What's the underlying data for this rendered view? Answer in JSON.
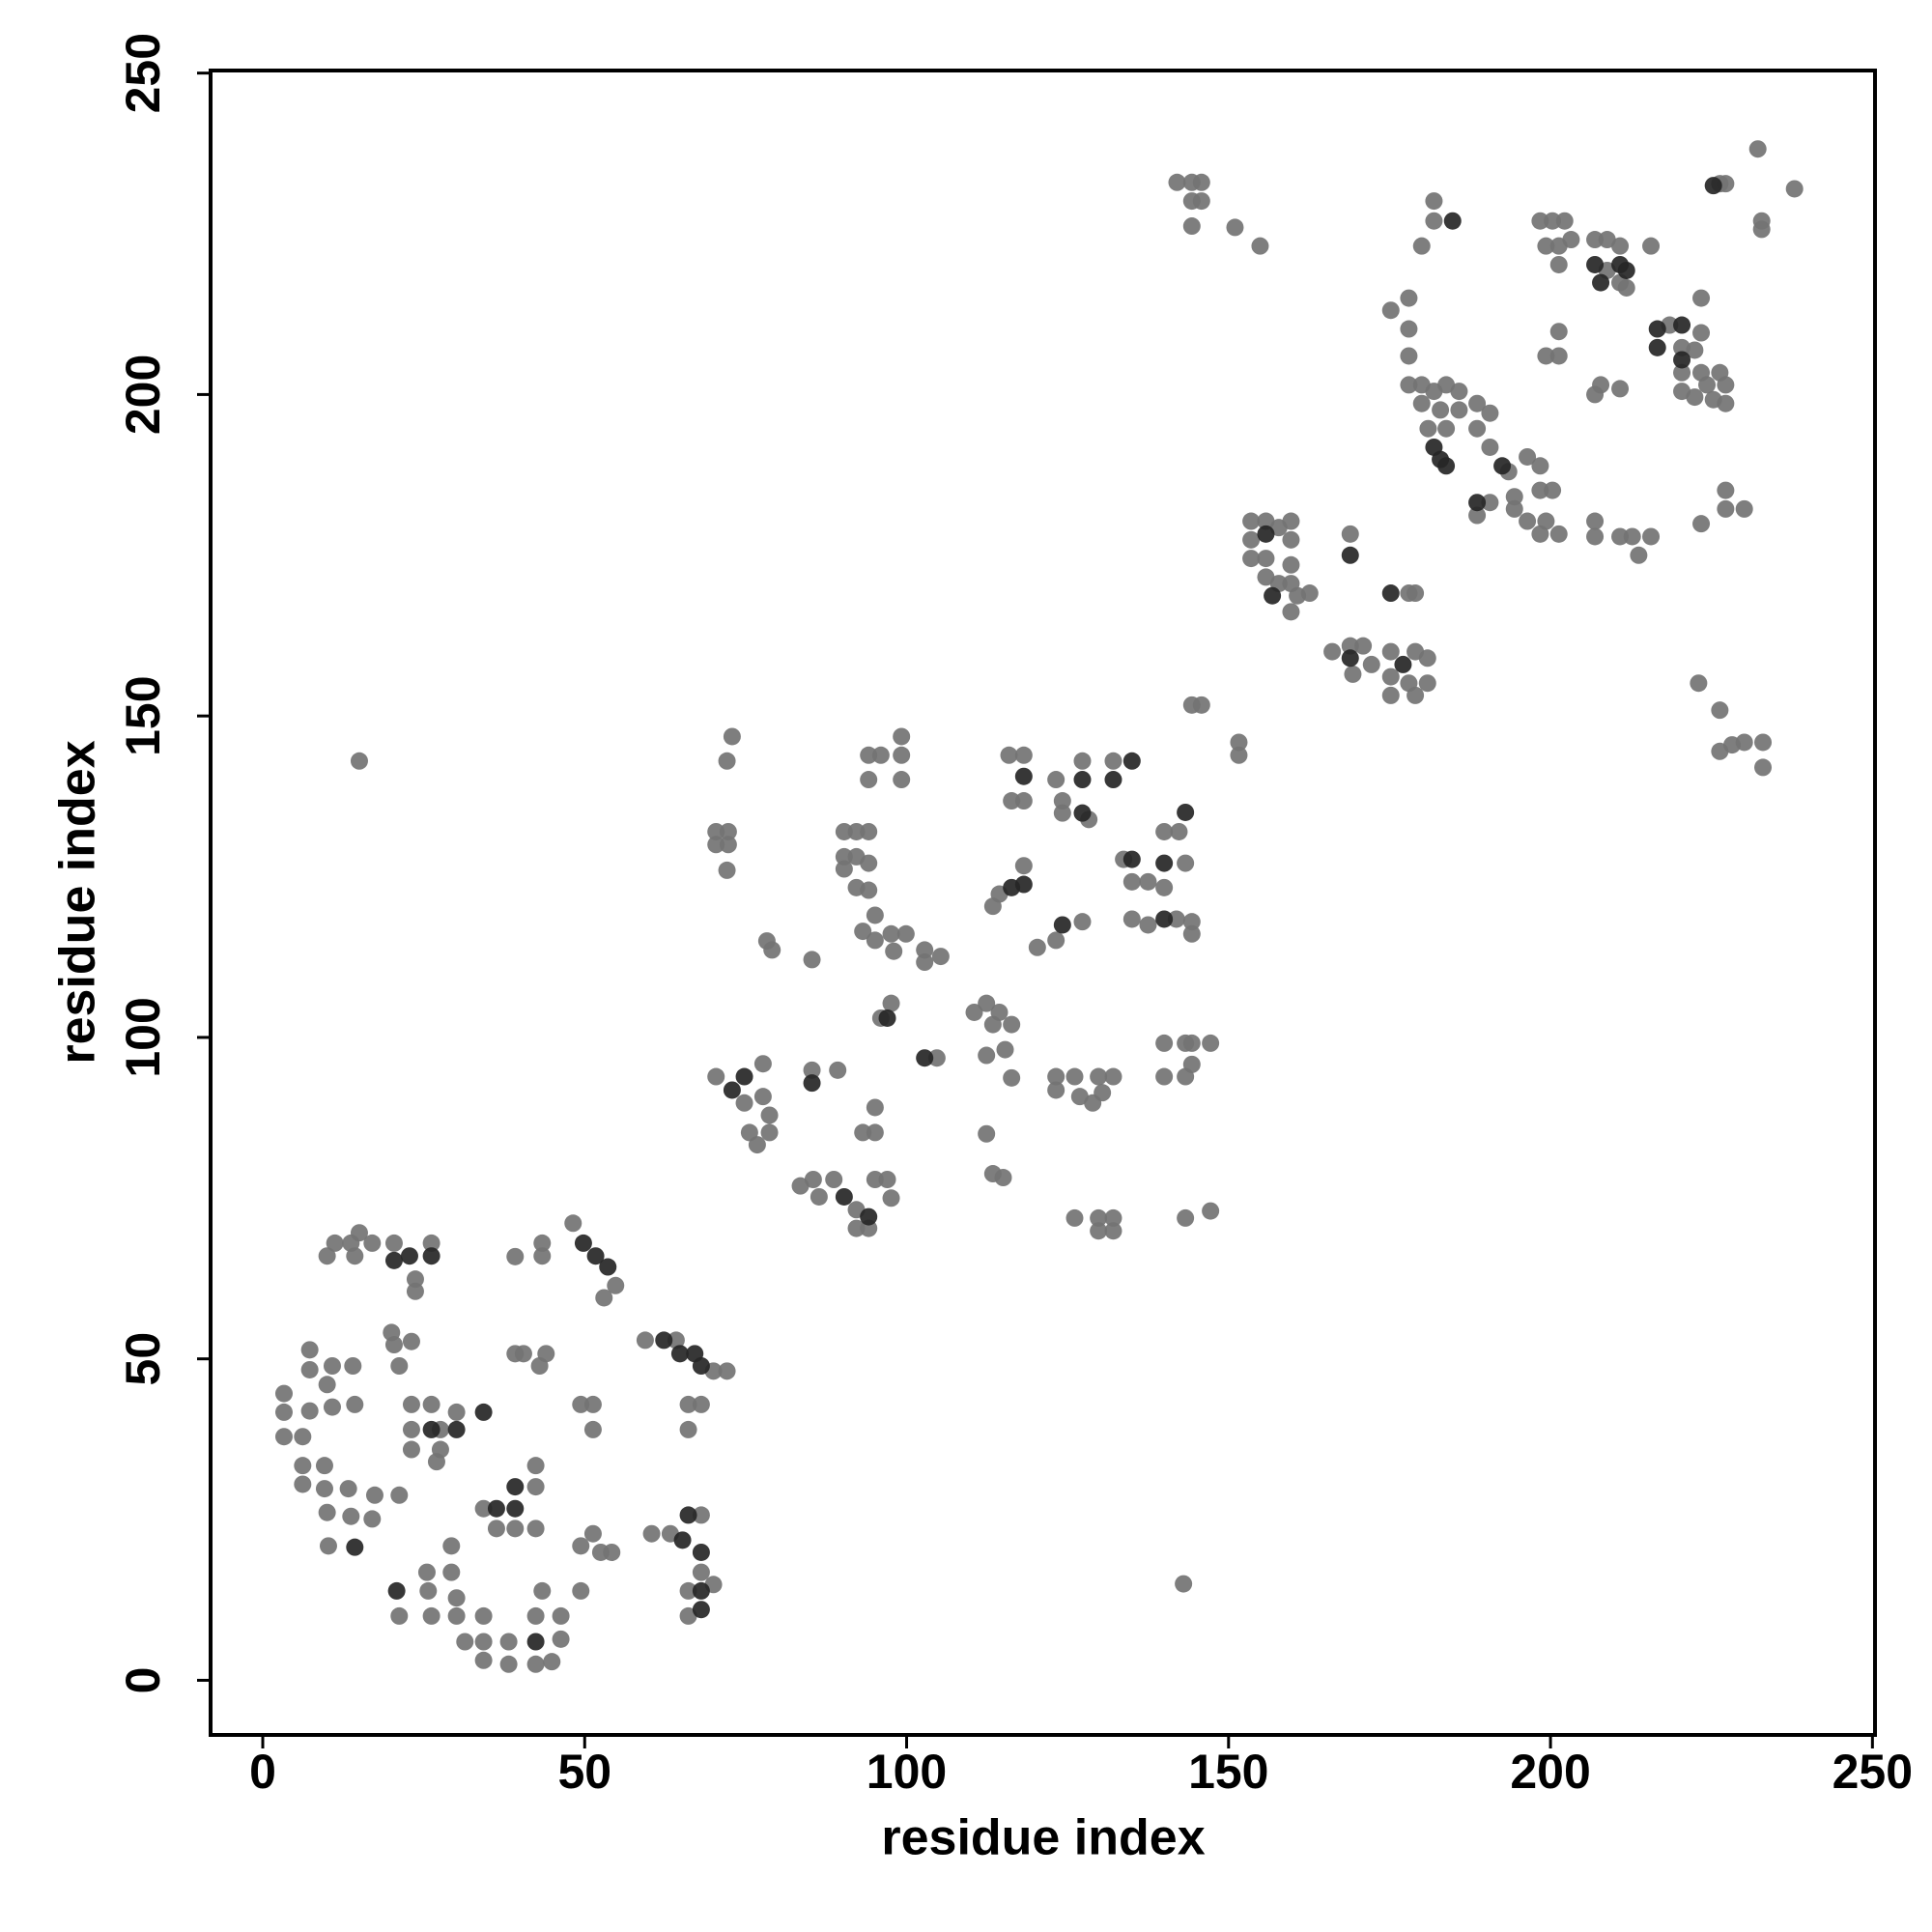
{
  "chart_data": {
    "type": "scatter",
    "xlabel": "residue index",
    "ylabel": "residue index",
    "xlim": [
      -8.1,
      250.4
    ],
    "ylim": [
      -8.5,
      250.4
    ],
    "xticks": [
      0,
      50,
      100,
      150,
      200,
      250
    ],
    "yticks": [
      0,
      50,
      100,
      150,
      200,
      250
    ],
    "series": [
      {
        "color": "#737373",
        "x": [
          15,
          143,
          3.3,
          6.2,
          3.3,
          3.3,
          6.2,
          6.2,
          7.3,
          7.3,
          7.3,
          10,
          10.8,
          10.8,
          9.6,
          9.6,
          10,
          10.2,
          11.2,
          10,
          13.7,
          14.3,
          15,
          17,
          14,
          14.3,
          13.3,
          13.7,
          17,
          17.4,
          20.4,
          23.7,
          23.7,
          26.2,
          20,
          20.4,
          21.2,
          23.1,
          21.2,
          23.1,
          23.1,
          23.1,
          26.2,
          27,
          27.6,
          27.6,
          30.1,
          29.3,
          29.3,
          25.5,
          21.2,
          25.7,
          26.2,
          30.1,
          30.1,
          31.4,
          34.3,
          34.3,
          34.3,
          34.3,
          36.3,
          39.2,
          39.2,
          39.2,
          38.2,
          38.2,
          42.4,
          42.4,
          42.4,
          42.4,
          42.4,
          40.5,
          43,
          44,
          43.4,
          43.4,
          43.4,
          44.9,
          46.3,
          46.3,
          49.4,
          49.4,
          48.2,
          54.8,
          53,
          49.4,
          51.3,
          51.3,
          51.3,
          54.2,
          52.5,
          59.4,
          64.2,
          70,
          72.1,
          66.1,
          68.1,
          66.1,
          60.4,
          63.3,
          68.1,
          68.1,
          70,
          66.1,
          66.1,
          72.9,
          72.1,
          70.4,
          72.3,
          70.4,
          72.3,
          72.1,
          70.4,
          74.8,
          75.6,
          77.7,
          77.7,
          78.7,
          76.8,
          78.7,
          78.3,
          79.1,
          85.3,
          85.3,
          89.3,
          83.5,
          85.5,
          86.4,
          88.7,
          92.2,
          92.2,
          94.1,
          95.1,
          97,
          97.6,
          93.2,
          95.1,
          95.1,
          90.3,
          92.2,
          94.1,
          90.3,
          92.2,
          94.1,
          90.3,
          92.2,
          94.1,
          94.1,
          96,
          94.1,
          99.2,
          99.2,
          99.2,
          93.2,
          95.1,
          95.1,
          97.6,
          98,
          99.9,
          102.8,
          102.8,
          105.3,
          96,
          97.6,
          104.7,
          110.5,
          112.4,
          114.4,
          113.4,
          116.3,
          112.4,
          115.3,
          116.3,
          112.4,
          113.4,
          115,
          114.4,
          118.2,
          115.9,
          118.2,
          118.2,
          116.3,
          113.4,
          120.3,
          123.2,
          127.3,
          123.2,
          124.2,
          124.2,
          127.3,
          128.3,
          132.1,
          123.2,
          123.2,
          126.1,
          126.9,
          128.9,
          129.8,
          132.1,
          130.4,
          126.1,
          129.8,
          129.8,
          132.1,
          132.1,
          133.7,
          135,
          137.5,
          135,
          137.5,
          141.9,
          140,
          140,
          142.3,
          143.3,
          144.3,
          144.3,
          140,
          143.3,
          144.3,
          147.2,
          140,
          143.3,
          144.3,
          143.3,
          147.2,
          144.3,
          145.8,
          151.6,
          151.6,
          153.5,
          155.8,
          157.8,
          159.7,
          153.5,
          159.7,
          153.5,
          155.8,
          159.7,
          155.8,
          157.8,
          159.7,
          160.7,
          162.6,
          159.7,
          168.9,
          166.1,
          168.9,
          170.9,
          169.3,
          172.2,
          175.2,
          175.2,
          179,
          180.9,
          175.2,
          178,
          179,
          180.9,
          178,
          179,
          142,
          144.3,
          145.8,
          144.3,
          145.8,
          144.3,
          151,
          154.9,
          181.9,
          181.9,
          180,
          175.2,
          178,
          178,
          178,
          178,
          180,
          181.9,
          183.8,
          185.8,
          180,
          182.9,
          185.8,
          181,
          183.8,
          188.6,
          190.6,
          188.6,
          190.6,
          193.5,
          196.4,
          198.4,
          188.6,
          190.6,
          194.4,
          194.4,
          198.4,
          200.3,
          196.4,
          199.3,
          201.3,
          198.4,
          206.9,
          206.9,
          210.8,
          212.7,
          215.6,
          213.7,
          198.4,
          200.3,
          202.2,
          199.3,
          201.3,
          203.2,
          201.3,
          206.9,
          208.8,
          210.8,
          215.6,
          208.8,
          210.8,
          211.8,
          201.3,
          199.3,
          201.3,
          206.9,
          207.8,
          210.8,
          218.5,
          220.4,
          222.4,
          223.4,
          223.4,
          220.4,
          223.4,
          224.3,
          226.3,
          227.2,
          222.4,
          225.3,
          227.2,
          220.4,
          223.4,
          227.2,
          227.2,
          230.1,
          226.3,
          227.2,
          232.2,
          232.8,
          232.8,
          237.9,
          223,
          226.3,
          226.3,
          230.1,
          233,
          233,
          228.2
        ],
        "values": [
          143,
          15,
          37.9,
          37.9,
          44.6,
          41.7,
          33.4,
          30.5,
          51.4,
          48.3,
          41.9,
          46,
          48.9,
          42.5,
          33.4,
          29.8,
          26.1,
          20.9,
          68,
          66,
          68,
          66,
          69.6,
          68,
          48.9,
          42.9,
          29.8,
          25.5,
          25.1,
          28.8,
          68,
          62.4,
          60.5,
          68,
          54.1,
          52.2,
          48.9,
          52.7,
          28.8,
          42.9,
          39,
          35.9,
          42.9,
          34,
          39,
          35.9,
          41.7,
          20.9,
          16.8,
          16.8,
          10,
          13.9,
          10,
          12.8,
          10,
          6,
          10,
          6,
          3.1,
          26.7,
          23.6,
          23.6,
          65.9,
          50.8,
          6,
          2.5,
          33.4,
          30.1,
          23.6,
          10,
          2.5,
          50.8,
          48.9,
          50.8,
          68,
          66,
          13.9,
          2.9,
          10,
          6.4,
          13.9,
          20.9,
          71.1,
          61.4,
          59.5,
          42.9,
          42.9,
          39,
          22.8,
          19.9,
          19.9,
          52.9,
          52.9,
          48.1,
          48.1,
          42.9,
          42.9,
          39,
          22.8,
          22.8,
          25.7,
          16.8,
          14.9,
          13.9,
          10,
          146.8,
          143,
          132,
          132,
          130,
          130,
          126,
          93.9,
          89.8,
          85.2,
          95.9,
          90.8,
          87.9,
          83.3,
          85.2,
          115,
          113.6,
          112.1,
          94.9,
          94.9,
          76.9,
          77.9,
          75.2,
          77.9,
          73.2,
          70.3,
          70.3,
          77.9,
          77.9,
          75,
          85.2,
          85.2,
          89.1,
          132,
          132,
          132,
          128.1,
          128.1,
          127.1,
          126.2,
          123.3,
          122.9,
          143.9,
          143.9,
          140.1,
          146.8,
          143.9,
          140.1,
          116.5,
          115.1,
          119,
          116.1,
          113.4,
          116.1,
          113.6,
          111.7,
          112.6,
          103,
          105.3,
          96.8,
          103.9,
          105.3,
          103.9,
          102,
          102,
          97.2,
          98.1,
          93.7,
          85,
          78.8,
          78.2,
          122.3,
          126.7,
          143.9,
          143.9,
          136.8,
          136.8,
          120.4,
          114,
          115.1,
          118,
          140.1,
          136.8,
          134.9,
          143,
          133.9,
          143,
          93.9,
          91.8,
          93.9,
          90.8,
          89.8,
          93.9,
          93.9,
          91.4,
          71.9,
          71.9,
          69.9,
          71.9,
          69.9,
          127.7,
          124.2,
          124.2,
          118.4,
          117.5,
          118.4,
          123.3,
          132,
          132,
          127.1,
          118,
          116.1,
          99.1,
          99.1,
          99.1,
          99.1,
          93.9,
          93.9,
          95.8,
          71.9,
          73,
          151.7,
          151.7,
          145.9,
          143.9,
          180.3,
          180.3,
          179.3,
          180.3,
          177.4,
          177.4,
          174.5,
          174.5,
          173.5,
          171.6,
          170.6,
          170.6,
          168.7,
          169.1,
          166.2,
          178.3,
          160,
          160.9,
          160.9,
          156.5,
          158,
          160,
          156.1,
          160,
          159,
          153.2,
          155.1,
          153.2,
          155.1,
          169.1,
          169.1,
          233,
          233,
          233,
          230.1,
          230.1,
          226.2,
          226,
          223.1,
          230.1,
          227,
          223.1,
          213.1,
          215,
          210.2,
          206,
          201.5,
          201.5,
          200.5,
          201.5,
          200.5,
          198.6,
          197.6,
          197.6,
          194.7,
          194.7,
          198.6,
          197.1,
          194.7,
          191.8,
          188,
          190.3,
          188.9,
          181.2,
          183.2,
          184.1,
          182.2,
          185.1,
          185.1,
          180.3,
          180.3,
          178.3,
          178.3,
          180.3,
          177.9,
          177.9,
          177.9,
          177.9,
          175,
          227,
          227,
          227,
          223.1,
          223.1,
          224.1,
          220.2,
          224.1,
          224.1,
          223.1,
          223.1,
          219.3,
          217.4,
          216.6,
          209.8,
          206,
          206,
          200,
          201.5,
          200.9,
          210.8,
          207.3,
          206.9,
          209.6,
          215,
          203.4,
          203.4,
          201.5,
          203.4,
          201.5,
          199.6,
          199.2,
          198.6,
          200.5,
          179.9,
          185.1,
          182.2,
          182.2,
          232.8,
          232.8,
          238.2,
          227,
          225.7,
          232,
          155.1,
          150.9,
          144.5,
          145.9,
          145.9,
          142,
          145.5
        ]
      },
      {
        "color": "#262626",
        "x": [
          14.3,
          20.4,
          22.8,
          26.2,
          26.2,
          30.1,
          20.8,
          34.3,
          36.3,
          39.2,
          39.2,
          42.4,
          49.8,
          51.7,
          53.6,
          62.3,
          64.8,
          67.1,
          68.1,
          65.2,
          66.1,
          68.1,
          68.1,
          68.1,
          72.9,
          74.8,
          85.3,
          90.3,
          94.1,
          97,
          102.8,
          116.3,
          118.2,
          118.2,
          124.2,
          127.3,
          127.3,
          135,
          132.1,
          135,
          140,
          140,
          143.3,
          155.8,
          156.8,
          168.9,
          168.9,
          177.1,
          175.2,
          184.8,
          181.9,
          182.9,
          183.8,
          192.5,
          188.6,
          206.9,
          210.8,
          211.8,
          207.8,
          216.6,
          220.4,
          216.6,
          220.4,
          225.3
        ],
        "values": [
          20.7,
          65.3,
          66,
          66,
          39,
          39,
          13.9,
          41.7,
          26.7,
          30.1,
          26.7,
          6,
          68,
          66,
          64.3,
          52.9,
          50.8,
          50.8,
          48.9,
          21.8,
          25.7,
          19.9,
          13.9,
          11,
          91.8,
          93.9,
          92.9,
          75.2,
          72.1,
          103,
          96.8,
          123.3,
          123.8,
          140.6,
          117.5,
          140.1,
          134.9,
          143,
          140.1,
          127.7,
          118.4,
          127.1,
          135,
          178.3,
          168.7,
          175,
          159,
          158,
          169.1,
          227,
          191.8,
          189.9,
          188.9,
          188.9,
          183.2,
          220.2,
          220.2,
          219.3,
          217.4,
          210.2,
          210.8,
          207.3,
          205.4,
          232.5
        ]
      }
    ]
  }
}
